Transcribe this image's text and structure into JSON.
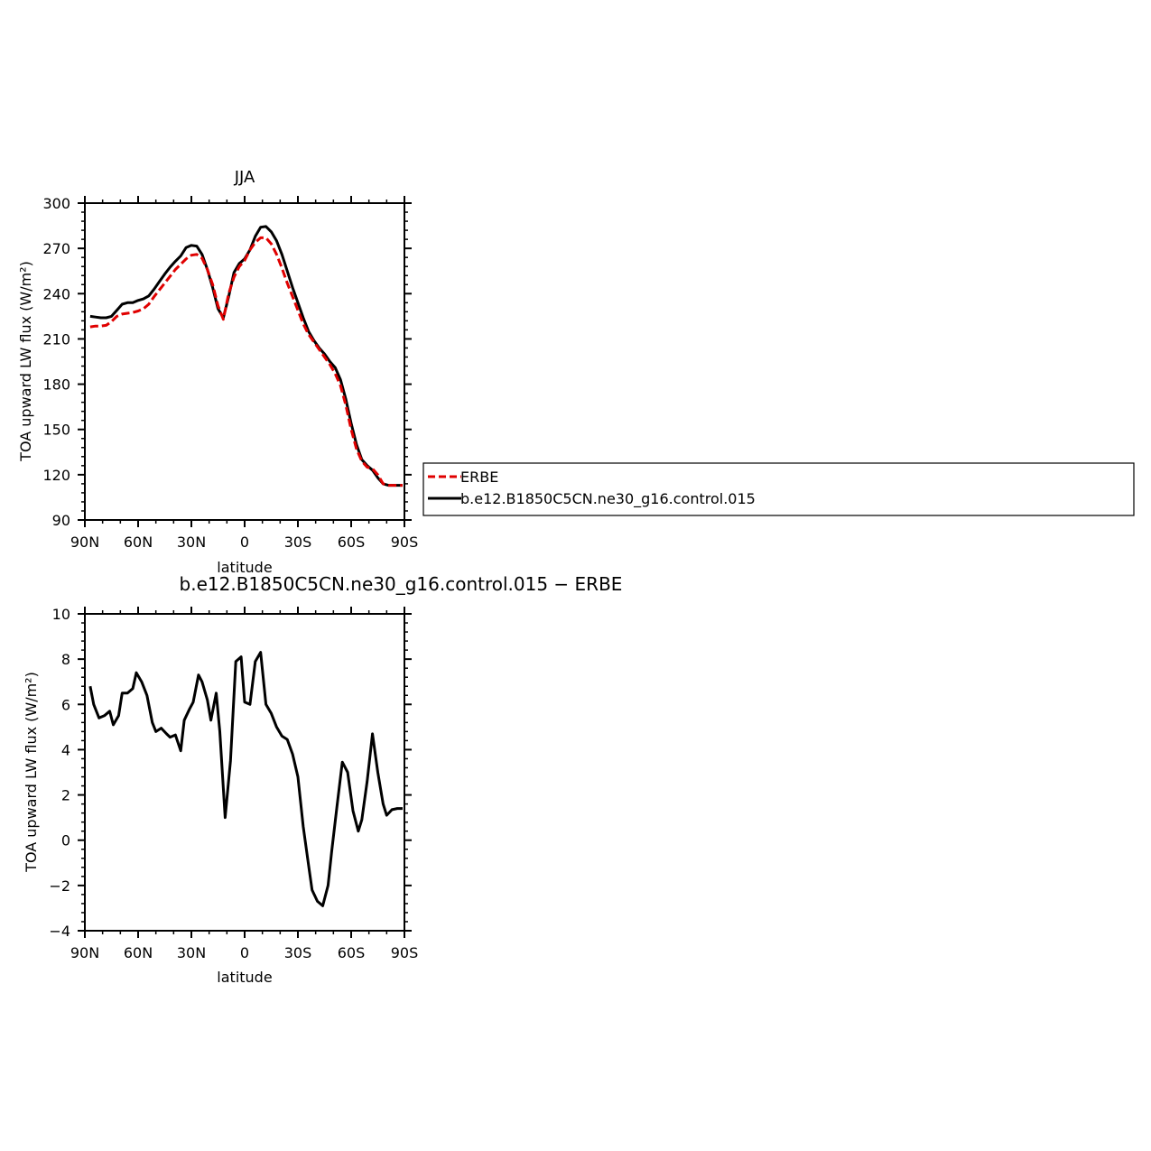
{
  "chart_data": [
    {
      "type": "line",
      "title": "JJA",
      "xlabel": "latitude",
      "ylabel": "TOA upward LW flux (W/m²)",
      "xlim": [
        90,
        -90
      ],
      "ylim": [
        90,
        300
      ],
      "xticks": [
        90,
        60,
        30,
        0,
        -30,
        -60,
        -90
      ],
      "xtick_labels": [
        "90N",
        "60N",
        "30N",
        "0",
        "30S",
        "60S",
        "90S"
      ],
      "yticks": [
        90,
        120,
        150,
        180,
        210,
        240,
        270,
        300
      ],
      "ytick_labels": [
        "90",
        "120",
        "150",
        "180",
        "210",
        "240",
        "270",
        "300"
      ],
      "legend_position": "right",
      "series": [
        {
          "name": "ERBE",
          "color": "#e00000",
          "style": "dashed",
          "x": [
            87,
            84,
            81,
            78,
            75,
            72,
            69,
            66,
            63,
            60,
            57,
            54,
            51,
            48,
            45,
            42,
            39,
            36,
            33,
            30,
            27,
            24,
            21,
            18,
            15,
            12,
            9,
            6,
            3,
            0,
            -3,
            -6,
            -9,
            -12,
            -15,
            -18,
            -21,
            -24,
            -27,
            -30,
            -33,
            -36,
            -39,
            -42,
            -45,
            -48,
            -51,
            -54,
            -57,
            -60,
            -63,
            -66,
            -69,
            -72,
            -75,
            -78,
            -81,
            -84,
            -87,
            -89
          ],
          "y": [
            218,
            218.5,
            218.5,
            219,
            221.5,
            225,
            226.5,
            227,
            227.5,
            228.5,
            230,
            233,
            238,
            242.5,
            247,
            251.5,
            256,
            259.5,
            263,
            265.5,
            266,
            263.5,
            256,
            246,
            232,
            223,
            240,
            251,
            258,
            262,
            269,
            274,
            277,
            277,
            273,
            266,
            257,
            247,
            238,
            229,
            220,
            213,
            208,
            203,
            198,
            193,
            187,
            179,
            166,
            150,
            137,
            129,
            125,
            124,
            120,
            114,
            113,
            113,
            113,
            113
          ]
        },
        {
          "name": "b.e12.B1850C5CN.ne30_g16.control.015",
          "color": "#000000",
          "style": "solid",
          "x": [
            87,
            84,
            81,
            78,
            75,
            72,
            69,
            66,
            63,
            60,
            57,
            54,
            51,
            48,
            45,
            42,
            39,
            36,
            33,
            30,
            27,
            24,
            21,
            18,
            15,
            12,
            9,
            6,
            3,
            0,
            -3,
            -6,
            -9,
            -12,
            -15,
            -18,
            -21,
            -24,
            -27,
            -30,
            -33,
            -36,
            -39,
            -42,
            -45,
            -48,
            -51,
            -54,
            -57,
            -60,
            -63,
            -66,
            -69,
            -72,
            -75,
            -78,
            -81,
            -84,
            -87,
            -89
          ],
          "y": [
            225,
            224.5,
            224,
            224,
            225,
            229,
            233,
            234,
            234,
            235.5,
            236.5,
            238.5,
            243,
            248,
            253,
            257.5,
            261.5,
            265,
            270.5,
            272,
            271.5,
            266,
            256,
            244,
            230,
            224,
            238,
            254,
            260,
            263,
            269,
            278,
            284,
            284.5,
            281,
            275,
            266,
            255,
            244,
            234,
            224,
            215,
            209,
            204,
            200,
            195,
            191,
            183,
            170,
            154,
            140,
            130,
            126,
            123,
            118,
            114,
            113,
            113,
            113,
            113
          ]
        }
      ]
    },
    {
      "type": "line",
      "title": "b.e12.B1850C5CN.ne30_g16.control.015 − ERBE",
      "xlabel": "latitude",
      "ylabel": "TOA upward LW flux (W/m²)",
      "xlim": [
        90,
        -90
      ],
      "ylim": [
        -4,
        10
      ],
      "xticks": [
        90,
        60,
        30,
        0,
        -30,
        -60,
        -90
      ],
      "xtick_labels": [
        "90N",
        "60N",
        "30N",
        "0",
        "30S",
        "60S",
        "90S"
      ],
      "yticks": [
        -4,
        -2,
        0,
        2,
        4,
        6,
        8,
        10
      ],
      "ytick_labels": [
        "−4",
        "−2",
        "0",
        "2",
        "4",
        "6",
        "8",
        "10"
      ],
      "series": [
        {
          "color": "#000000",
          "style": "solid",
          "x": [
            87,
            85,
            82,
            79,
            76,
            74,
            71,
            69,
            66,
            63,
            61,
            58,
            55,
            52,
            50,
            47,
            44,
            42,
            39,
            36,
            34,
            31,
            29,
            26,
            24,
            21,
            19,
            16,
            14,
            11,
            8,
            5,
            2,
            0,
            -3,
            -6,
            -9,
            -12,
            -15,
            -18,
            -21,
            -24,
            -27,
            -30,
            -33,
            -36,
            -38,
            -41,
            -44,
            -47,
            -49,
            -52,
            -55,
            -58,
            -61,
            -64,
            -66,
            -69,
            -72,
            -75,
            -78,
            -80,
            -83,
            -86,
            -89
          ],
          "y": [
            6.8,
            6,
            5.4,
            5.5,
            5.7,
            5.1,
            5.5,
            6.5,
            6.5,
            6.7,
            7.4,
            7,
            6.4,
            5.2,
            4.8,
            4.95,
            4.7,
            4.55,
            4.65,
            3.95,
            5.3,
            5.8,
            6.1,
            7.3,
            7,
            6.2,
            5.3,
            6.5,
            4.8,
            1,
            3.5,
            7.9,
            8.1,
            6.1,
            6,
            7.9,
            8.3,
            6,
            5.6,
            5,
            4.6,
            4.45,
            3.8,
            2.8,
            0.6,
            -1.1,
            -2.2,
            -2.7,
            -2.9,
            -2,
            -0.5,
            1.5,
            3.45,
            3,
            1.3,
            0.4,
            0.9,
            2.6,
            4.7,
            3,
            1.6,
            1.1,
            1.35,
            1.4,
            1.4
          ]
        }
      ]
    }
  ]
}
